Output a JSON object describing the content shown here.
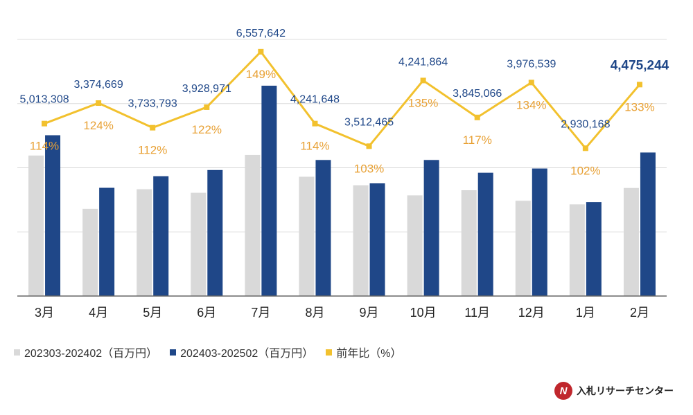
{
  "chart_data": {
    "type": "bar",
    "categories": [
      "3月",
      "4月",
      "5月",
      "6月",
      "7月",
      "8月",
      "9月",
      "10月",
      "11月",
      "12月",
      "1月",
      "2月"
    ],
    "series": [
      {
        "name": "202303-202402（百万円）",
        "type": "bar",
        "color": "#d9d9d9",
        "values": [
          4380000,
          2720000,
          3330000,
          3220000,
          4400000,
          3720000,
          3450000,
          3140000,
          3300000,
          2970000,
          2860000,
          3370000
        ]
      },
      {
        "name": "202403-202502（百万円）",
        "type": "bar",
        "color": "#1f4788",
        "values": [
          5013308,
          3374669,
          3733793,
          3928971,
          6557642,
          4241648,
          3512465,
          4241864,
          3845066,
          3976539,
          2930168,
          4475244
        ],
        "labels": [
          "5,013,308",
          "3,374,669",
          "3,733,793",
          "3,928,971",
          "6,557,642",
          "4,241,648",
          "3,512,465",
          "4,241,864",
          "3,845,066",
          "3,976,539",
          "2,930,168",
          "4,475,244"
        ]
      },
      {
        "name": "前年比（%）",
        "type": "line",
        "color": "#f2c12e",
        "values": [
          114,
          124,
          112,
          122,
          149,
          114,
          103,
          135,
          117,
          134,
          102,
          133
        ],
        "labels": [
          "114%",
          "124%",
          "112%",
          "122%",
          "149%",
          "114%",
          "103%",
          "135%",
          "117%",
          "134%",
          "102%",
          "133%"
        ]
      }
    ],
    "ylim": [
      0,
      8000000
    ],
    "y2lim": [
      30,
      155
    ],
    "grid": true,
    "legend_position": "bottom-left",
    "value_label_color": "#1f4788",
    "pct_label_color": "#e8a135"
  },
  "branding": {
    "mark": "N",
    "name": "入札リサーチセンター"
  }
}
